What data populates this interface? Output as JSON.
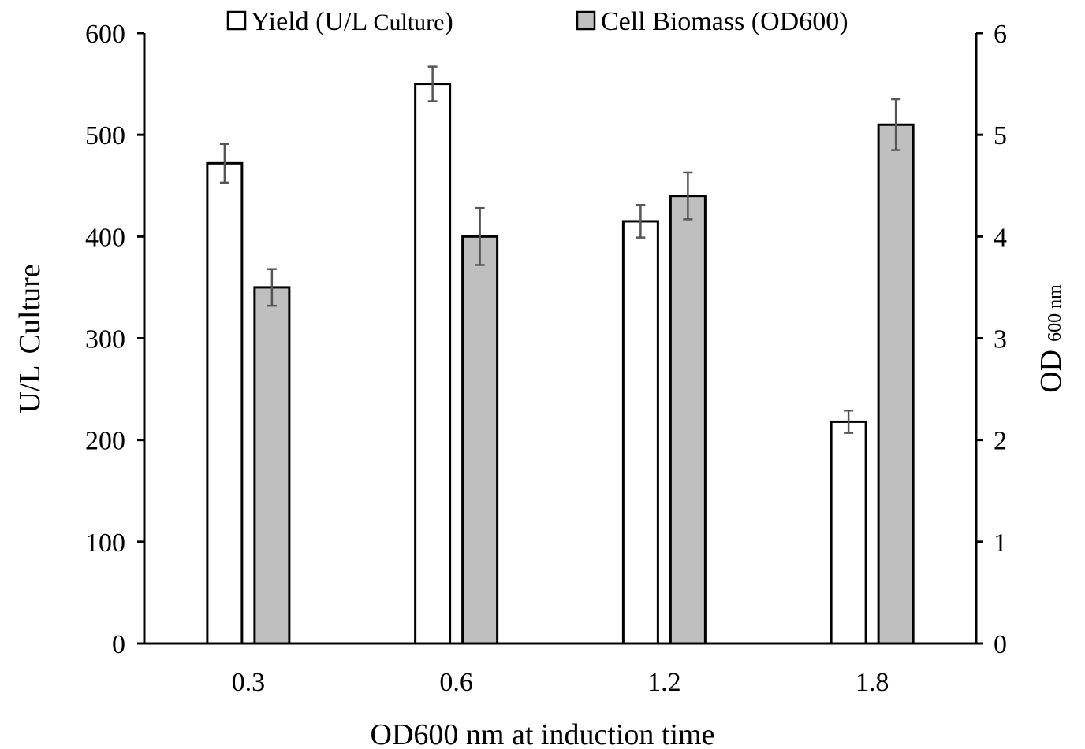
{
  "chart_data": {
    "type": "bar",
    "categories": [
      "0.3",
      "0.6",
      "1.2",
      "1.8"
    ],
    "xlabel": "OD600 nm at induction time",
    "ylabel": {
      "main": "U/L",
      "sub": "Culture"
    },
    "y2label": {
      "main": "OD",
      "sub": "600 nm"
    },
    "ylim": [
      0,
      600
    ],
    "y2lim": [
      0,
      6
    ],
    "yticks": [
      "0",
      "100",
      "200",
      "300",
      "400",
      "500",
      "600"
    ],
    "y2ticks": [
      "0",
      "1",
      "2",
      "3",
      "4",
      "5",
      "6"
    ],
    "legend_position": "top",
    "grid": false,
    "series": [
      {
        "name": "Yield (U/L Culture)",
        "axis": "left",
        "color": "#ffffff",
        "values": [
          472,
          550,
          415,
          218
        ],
        "errors": [
          19,
          17,
          16,
          11
        ]
      },
      {
        "name": "Cell Biomass (OD600)",
        "axis": "right",
        "color": "#bfbfbf",
        "values": [
          3.5,
          4.0,
          4.4,
          5.1
        ],
        "errors": [
          0.18,
          0.28,
          0.23,
          0.25
        ]
      }
    ],
    "legend": {
      "yield_main": "Yield (U/L ",
      "yield_sub": "Culture",
      "yield_end": ")",
      "biomass": "Cell Biomass (OD600)"
    }
  }
}
